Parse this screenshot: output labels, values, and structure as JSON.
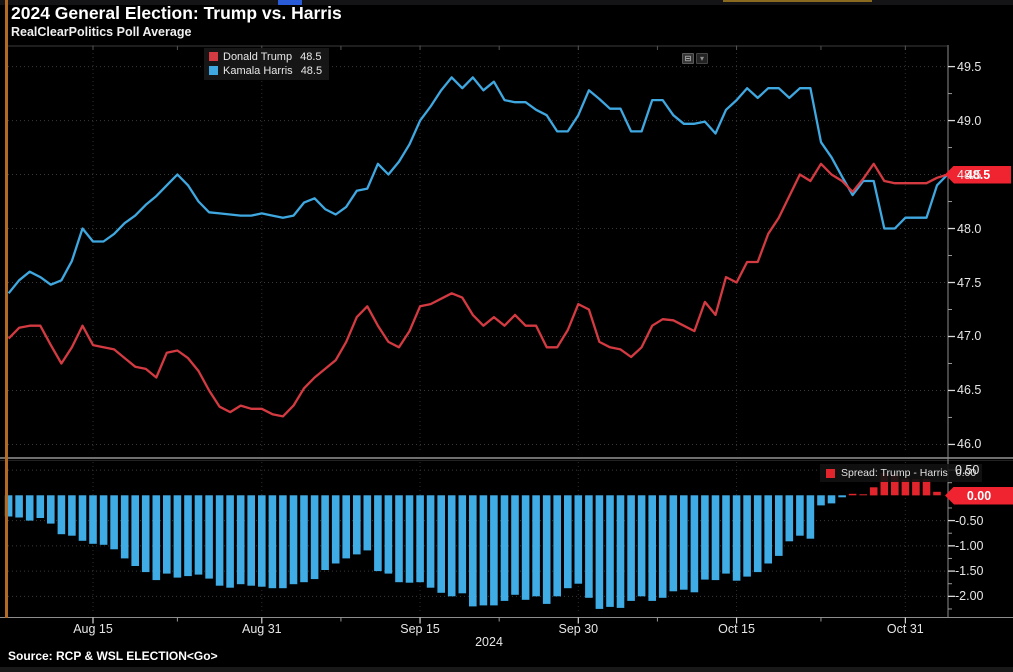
{
  "header": {
    "title": "2024 General Election: Trump vs. Harris",
    "subtitle": "RealClearPolitics Poll Average"
  },
  "toolbar": {
    "icons": [
      {
        "name": "panel-collapse-icon",
        "glyph": "⊟"
      },
      {
        "name": "panel-menu-icon",
        "glyph": "▾"
      }
    ]
  },
  "source_line": "Source: RCP & WSL ELECTION<Go>",
  "chart_data": {
    "type": "line+bar",
    "x_unit": "day",
    "year_label": "2024",
    "x_ticks": [
      {
        "index": 8,
        "label": "Aug 15"
      },
      {
        "index": 24,
        "label": "Aug 31"
      },
      {
        "index": 39,
        "label": "Sep 15"
      },
      {
        "index": 54,
        "label": "Sep 30"
      },
      {
        "index": 69,
        "label": "Oct 15"
      },
      {
        "index": 85,
        "label": "Oct 31"
      }
    ],
    "main_panel": {
      "type": "line",
      "ylim": [
        46.0,
        49.5
      ],
      "grid": true,
      "yticks": [
        {
          "value": 49.5,
          "label": "49.5"
        },
        {
          "value": 49.0,
          "label": "49.0"
        },
        {
          "value": 48.5,
          "label": "48.5"
        },
        {
          "value": 48.0,
          "label": "48.0"
        },
        {
          "value": 47.5,
          "label": "47.5"
        },
        {
          "value": 47.0,
          "label": "47.0"
        },
        {
          "value": 46.5,
          "label": "46.5"
        },
        {
          "value": 46.0,
          "label": "46.0"
        }
      ],
      "badge": {
        "text": "48.5",
        "color": "#ef2430"
      },
      "series": [
        {
          "name": "Donald Trump",
          "last_value": "48.5",
          "color": "#d43a41",
          "values": [
            46.98,
            47.08,
            47.1,
            47.1,
            46.92,
            46.75,
            46.9,
            47.1,
            46.92,
            46.9,
            46.88,
            46.8,
            46.72,
            46.7,
            46.62,
            46.85,
            46.87,
            46.8,
            46.68,
            46.5,
            46.35,
            46.3,
            46.36,
            46.33,
            46.33,
            46.28,
            46.26,
            46.36,
            46.52,
            46.62,
            46.7,
            46.78,
            46.95,
            47.18,
            47.28,
            47.1,
            46.95,
            46.9,
            47.05,
            47.28,
            47.3,
            47.35,
            47.4,
            47.36,
            47.2,
            47.1,
            47.18,
            47.1,
            47.2,
            47.1,
            47.1,
            46.9,
            46.9,
            47.06,
            47.3,
            47.25,
            46.95,
            46.9,
            46.88,
            46.81,
            46.9,
            47.1,
            47.16,
            47.15,
            47.1,
            47.05,
            47.32,
            47.2,
            47.55,
            47.5,
            47.69,
            47.69,
            47.95,
            48.1,
            48.3,
            48.5,
            48.44,
            48.6,
            48.5,
            48.44,
            48.34,
            48.46,
            48.6,
            48.44,
            48.42,
            48.42,
            48.42,
            48.42,
            48.47,
            48.5
          ]
        },
        {
          "name": "Kamala Harris",
          "last_value": "48.5",
          "color": "#3fa8e0",
          "values": [
            47.4,
            47.52,
            47.6,
            47.55,
            47.48,
            47.52,
            47.7,
            48.0,
            47.88,
            47.88,
            47.95,
            48.05,
            48.12,
            48.22,
            48.3,
            48.4,
            48.5,
            48.4,
            48.25,
            48.15,
            48.14,
            48.13,
            48.12,
            48.12,
            48.14,
            48.12,
            48.1,
            48.12,
            48.24,
            48.28,
            48.18,
            48.13,
            48.2,
            48.35,
            48.37,
            48.6,
            48.5,
            48.62,
            48.78,
            49.0,
            49.13,
            49.28,
            49.4,
            49.3,
            49.4,
            49.28,
            49.36,
            49.19,
            49.17,
            49.17,
            49.1,
            49.05,
            48.9,
            48.9,
            49.05,
            49.28,
            49.2,
            49.11,
            49.11,
            48.9,
            48.9,
            49.19,
            49.19,
            49.05,
            48.97,
            48.97,
            48.99,
            48.88,
            49.1,
            49.19,
            49.3,
            49.21,
            49.3,
            49.3,
            49.21,
            49.3,
            49.3,
            48.8,
            48.66,
            48.48,
            48.31,
            48.44,
            48.44,
            48.0,
            48.0,
            48.1,
            48.1,
            48.1,
            48.4,
            48.5
          ]
        }
      ]
    },
    "spread_panel": {
      "type": "bar",
      "derived": "trump_minus_harris",
      "legend": {
        "label": "Spread: Trump - Harris",
        "value": "0.00"
      },
      "ylim": [
        -2.0,
        0.5
      ],
      "grid": true,
      "yticks": [
        {
          "value": 0.5,
          "label": "0.50"
        },
        {
          "value": 0.0,
          "label": "0.00"
        },
        {
          "value": -0.5,
          "label": "-0.50"
        },
        {
          "value": -1.0,
          "label": "-1.00"
        },
        {
          "value": -1.5,
          "label": "-1.50"
        },
        {
          "value": -2.0,
          "label": "-2.00"
        }
      ],
      "badge": {
        "text": "0.00",
        "color": "#ef2430"
      },
      "bar_colors": {
        "positive": "#e2252c",
        "negative": "#3face6"
      }
    }
  }
}
